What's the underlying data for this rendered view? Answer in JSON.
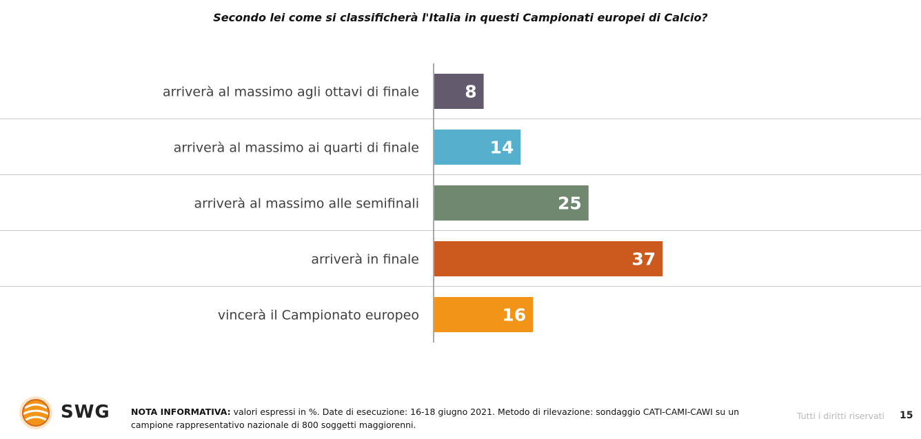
{
  "chart_data": {
    "type": "bar",
    "orientation": "horizontal",
    "title": "Secondo lei come si classificherà l'Italia in questi Campionati europei di Calcio?",
    "categories": [
      "arriverà al massimo agli ottavi di finale",
      "arriverà al massimo ai quarti di finale",
      "arriverà al massimo alle semifinali",
      "arriverà in finale",
      "vincerà il Campionato europeo"
    ],
    "values": [
      8,
      14,
      25,
      37,
      16
    ],
    "colors": [
      "#635a6e",
      "#56afcd",
      "#708870",
      "#cc5a1e",
      "#f29417"
    ],
    "xlim": [
      0,
      40
    ],
    "grid": false
  },
  "footer": {
    "note_label": "NOTA INFORMATIVA:",
    "note_text": " valori espressi in %. Date di esecuzione: 16-18 giugno 2021. Metodo di rilevazione: sondaggio CATI-CAMI-CAWI su un campione rappresentativo nazionale di 800 soggetti maggiorenni.",
    "rights": "Tutti i diritti riservati",
    "page_number": "15"
  },
  "brand": {
    "logo_text": "SWG",
    "logo_icon": "swg-globe-logo-icon"
  }
}
